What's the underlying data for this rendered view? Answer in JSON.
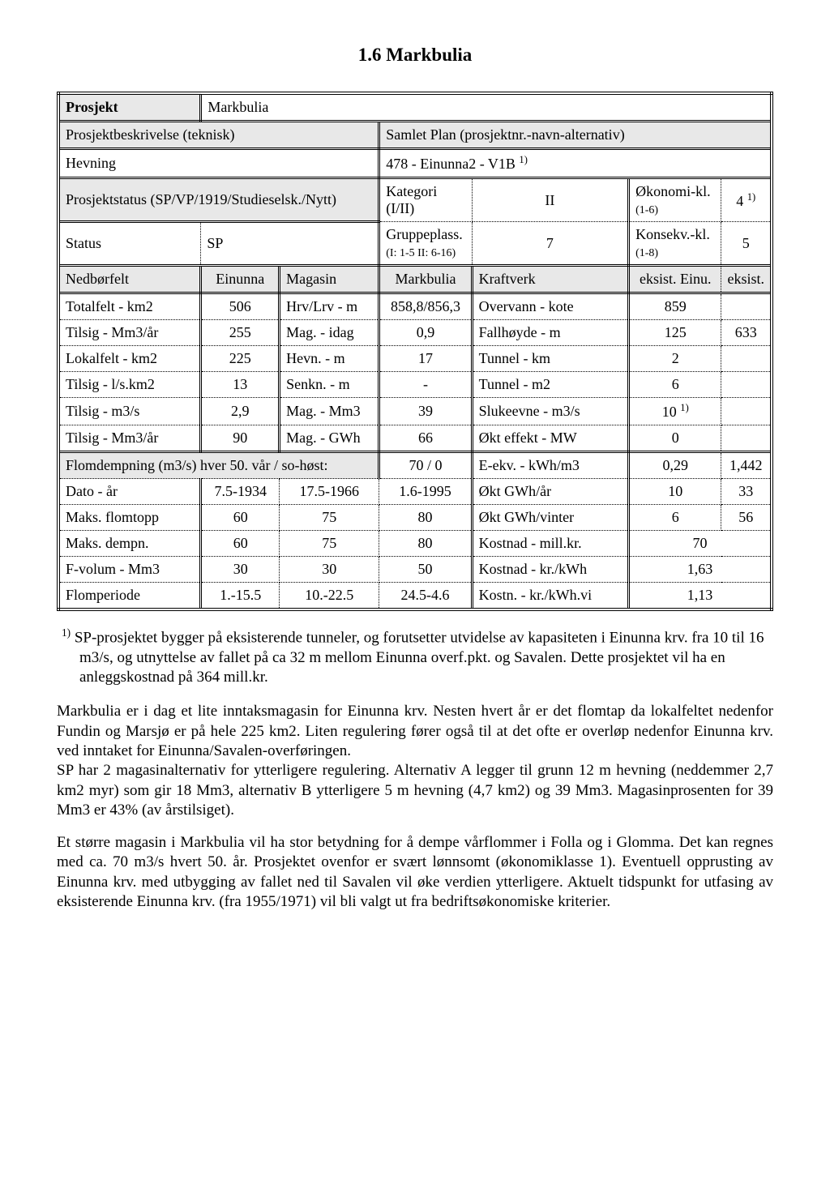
{
  "title": "1.6 Markbulia",
  "row_prosjekt": {
    "label": "Prosjekt",
    "value": "Markbulia"
  },
  "row2": {
    "left_header": "Prosjektbeskrivelse (teknisk)",
    "right_header": "Samlet Plan (prosjektnr.-navn-alternativ)"
  },
  "row3": {
    "left_label": "Hevning",
    "right_value": "478 - Einunna2 - V1B ",
    "right_sup": "1)"
  },
  "row4": {
    "left_header": "Prosjektstatus (SP/VP/1919/Studieselsk./Nytt)",
    "kat_label": "Kategori (I/II)",
    "kat_val": "II",
    "okon_label": "Økonomi-kl.",
    "okon_sub": "(1-6)",
    "okon_val": "4 ",
    "okon_sup": "1)"
  },
  "row5": {
    "status_label": "Status",
    "status_val": "SP",
    "grp_label": "Gruppeplass.",
    "grp_sub": "(I: 1-5  II: 6-16)",
    "grp_val": "7",
    "kon_label": "Konsekv.-kl.",
    "kon_sub": "(1-8)",
    "kon_val": "5"
  },
  "headers": {
    "c1": "Nedbørfelt",
    "c2": "Einunna",
    "c3": "Magasin",
    "c4": "Markbulia",
    "c5": "Kraftverk",
    "c6": "eksist. Einu.",
    "c7": "eksist."
  },
  "rows": [
    {
      "a": "Totalfelt - km2",
      "b": "506",
      "c": "Hrv/Lrv - m",
      "d": "858,8/856,3",
      "e": "Overvann - kote",
      "f": "859",
      "g": ""
    },
    {
      "a": "Tilsig - Mm3/år",
      "b": "255",
      "c": "Mag. - idag",
      "d": "0,9",
      "e": "Fallhøyde - m",
      "f": "125",
      "g": "633"
    },
    {
      "a": "Lokalfelt - km2",
      "b": "225",
      "c": "Hevn. - m",
      "d": "17",
      "e": "Tunnel - km",
      "f": "2",
      "g": ""
    },
    {
      "a": "Tilsig - l/s.km2",
      "b": "13",
      "c": "Senkn. - m",
      "d": "-",
      "e": "Tunnel - m2",
      "f": "6",
      "g": ""
    },
    {
      "a": "Tilsig - m3/s",
      "b": "2,9",
      "c": "Mag. - Mm3",
      "d": "39",
      "e": "Slukeevne - m3/s",
      "f": "10 ",
      "fsup": "1)",
      "g": ""
    },
    {
      "a": "Tilsig - Mm3/år",
      "b": "90",
      "c": "Mag. - GWh",
      "d": "66",
      "e": "Økt effekt - MW",
      "f": "0",
      "g": ""
    }
  ],
  "flom_header": {
    "label": "Flomdempning  (m3/s) hver 50. vår / so-høst:",
    "val": "70 / 0",
    "e": "E-ekv. - kWh/m3",
    "f": "0,29",
    "g": "1,442"
  },
  "dato_row": {
    "a": "Dato - år",
    "b": "7.5-1934",
    "c": "17.5-1966",
    "d": "1.6-1995",
    "e": "Økt GWh/år",
    "f": "10",
    "g": "33"
  },
  "bottom": [
    {
      "a": "Maks. flomtopp",
      "b": "60",
      "c": "75",
      "d": "80",
      "e": "Økt GWh/vinter",
      "f": "6",
      "g": "56"
    },
    {
      "a": "Maks. dempn.",
      "b": "60",
      "c": "75",
      "d": "80",
      "e": "Kostnad - mill.kr.",
      "fg": "70"
    },
    {
      "a": "F-volum - Mm3",
      "b": "30",
      "c": "30",
      "d": "50",
      "e": "Kostnad - kr./kWh",
      "fg": "1,63"
    },
    {
      "a": "Flomperiode",
      "b": "1.-15.5",
      "c": "10.-22.5",
      "d": "24.5-4.6",
      "e": "Kostn. - kr./kWh.vi",
      "fg": "1,13"
    }
  ],
  "footnote": {
    "sup": "1)",
    "text": " SP-prosjektet bygger på eksisterende tunneler, og forutsetter utvidelse av kapasiteten i Einunna krv. fra 10 til 16 m3/s, og utnyttelse av fallet på ca 32 m mellom Einunna overf.pkt. og Savalen. Dette prosjektet vil ha en anleggskostnad på 364 mill.kr."
  },
  "para1": "Markbulia er i dag et lite inntaksmagasin for Einunna krv. Nesten hvert år er det flomtap da lokal­feltet nedenfor Fundin og Marsjø er på hele 225 km2. Liten regulering fører også til at det ofte er overløp nedenfor Einunna krv. ved inntaket for Einunna/Savalen-overføringen.",
  "para2": "SP har 2 magasinalternativ for ytterligere regulering. Alternativ A legger til grunn 12 m hevning (neddemmer 2,7 km2 myr) som gir 18 Mm3, alternativ B ytterligere 5 m hevning (4,7 km2) og 39 Mm3. Magasinprosenten for 39 Mm3 er 43% (av årstilsiget).",
  "para3": "Et større magasin i Markbulia vil ha stor betydning for å dempe vårflommer i Folla og i Glomma. Det kan regnes med ca. 70 m3/s hvert 50. år. Prosjektet ovenfor er svært lønnsomt (økonomiklasse 1). Eventuell opprusting av Einunna krv. med utbygging av fallet ned til Savalen vil øke verdien ytterligere. Aktuelt tidspunkt for utfasing av eksisterende Einunna krv. (fra 1955/1971) vil bli valgt ut fra bedriftsøkonomiske kriterier.",
  "colwidths": {
    "c1": "17%",
    "c2": "11%",
    "c3": "13%",
    "c4": "13%",
    "c5": "22%",
    "c6": "12%",
    "c7": "12%"
  }
}
